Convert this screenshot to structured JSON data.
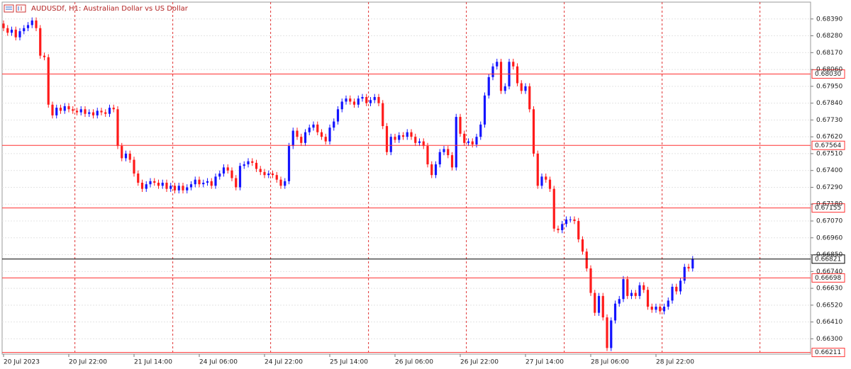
{
  "chart_data": {
    "type": "candlestick",
    "title": "AUDUSDf, H1:  Australian Dollar vs US Dollar",
    "up_color": "#1414ff",
    "down_color": "#ff1a1a",
    "grid": true,
    "ylim": [
      0.662,
      0.685
    ],
    "yticks": [
      {
        "value": 0.6839,
        "label": "0.68390"
      },
      {
        "value": 0.6828,
        "label": "0.68280"
      },
      {
        "value": 0.6817,
        "label": "0.68170"
      },
      {
        "value": 0.6806,
        "label": "0.68060"
      },
      {
        "value": 0.6795,
        "label": "0.67950"
      },
      {
        "value": 0.6784,
        "label": "0.67840"
      },
      {
        "value": 0.6773,
        "label": "0.67730"
      },
      {
        "value": 0.6762,
        "label": "0.67620"
      },
      {
        "value": 0.6751,
        "label": "0.67510"
      },
      {
        "value": 0.674,
        "label": "0.67400"
      },
      {
        "value": 0.6729,
        "label": "0.67290"
      },
      {
        "value": 0.6718,
        "label": "0.67180"
      },
      {
        "value": 0.6707,
        "label": "0.67070"
      },
      {
        "value": 0.6696,
        "label": "0.66960"
      },
      {
        "value": 0.6685,
        "label": "0.66850"
      },
      {
        "value": 0.6674,
        "label": "0.66740"
      },
      {
        "value": 0.6663,
        "label": "0.66630"
      },
      {
        "value": 0.6652,
        "label": "0.66520"
      },
      {
        "value": 0.6641,
        "label": "0.66410"
      },
      {
        "value": 0.663,
        "label": "0.66300"
      }
    ],
    "levels": [
      {
        "value": 0.6803,
        "label": "0.68030",
        "color": "#ff3030"
      },
      {
        "value": 0.67564,
        "label": "0.67564",
        "color": "#ff3030"
      },
      {
        "value": 0.67155,
        "label": "0.67155",
        "color": "#ff3030"
      },
      {
        "value": 0.66821,
        "label": "0.66821",
        "color": "#000000"
      },
      {
        "value": 0.66698,
        "label": "0.66698",
        "color": "#ff3030"
      },
      {
        "value": 0.66211,
        "label": "0.66211",
        "color": "#ff3030"
      }
    ],
    "categories": [
      "20 Jul 2023",
      null,
      null,
      null,
      null,
      null,
      null,
      null,
      null,
      null,
      null,
      null,
      null,
      null,
      null,
      null,
      "20 Jul 22:00",
      null,
      null,
      null,
      null,
      null,
      null,
      null,
      null,
      null,
      null,
      null,
      null,
      null,
      null,
      null,
      "21 Jul 14:00",
      null,
      null,
      null,
      null,
      null,
      null,
      null,
      null,
      null,
      null,
      null,
      null,
      null,
      null,
      null,
      "24 Jul 06:00",
      null,
      null,
      null,
      null,
      null,
      null,
      null,
      null,
      null,
      null,
      null,
      null,
      null,
      null,
      null,
      "24 Jul 22:00",
      null,
      null,
      null,
      null,
      null,
      null,
      null,
      null,
      null,
      null,
      null,
      null,
      null,
      null,
      null,
      "25 Jul 14:00",
      null,
      null,
      null,
      null,
      null,
      null,
      null,
      null,
      null,
      null,
      null,
      null,
      null,
      null,
      null,
      "26 Jul 06:00",
      null,
      null,
      null,
      null,
      null,
      null,
      null,
      null,
      null,
      null,
      null,
      null,
      null,
      null,
      null,
      "26 Jul 22:00",
      null,
      null,
      null,
      null,
      null,
      null,
      null,
      null,
      null,
      null,
      null,
      null,
      null,
      null,
      null,
      "27 Jul 14:00",
      null,
      null,
      null,
      null,
      null,
      null,
      null,
      null,
      null,
      null,
      null,
      null,
      null,
      null,
      null,
      "28 Jul 06:00",
      null,
      null,
      null,
      null,
      null,
      null,
      null,
      null,
      null,
      null,
      null,
      null,
      null,
      null,
      null,
      "28 Jul 22:00",
      null,
      null,
      null,
      null,
      null,
      null,
      null,
      null,
      null
    ],
    "open": [
      0.6836,
      0.6833,
      0.683,
      0.6832,
      0.6827,
      0.6831,
      0.6833,
      0.6835,
      0.6838,
      0.6833,
      0.6815,
      0.6814,
      0.6783,
      0.6776,
      0.6781,
      0.6779,
      0.6782,
      0.678,
      0.6779,
      0.6778,
      0.678,
      0.6777,
      0.6778,
      0.6776,
      0.6779,
      0.6778,
      0.6777,
      0.6781,
      0.678,
      0.6756,
      0.6748,
      0.6751,
      0.6747,
      0.6738,
      0.6732,
      0.6728,
      0.6731,
      0.6733,
      0.6732,
      0.673,
      0.6732,
      0.6728,
      0.673,
      0.6727,
      0.673,
      0.6727,
      0.6729,
      0.6731,
      0.6734,
      0.6731,
      0.6732,
      0.6733,
      0.673,
      0.6736,
      0.6738,
      0.6742,
      0.674,
      0.6735,
      0.6729,
      0.6743,
      0.6744,
      0.6746,
      0.6745,
      0.6741,
      0.6739,
      0.6737,
      0.6738,
      0.6737,
      0.6734,
      0.673,
      0.6733,
      0.6756,
      0.6766,
      0.6762,
      0.6758,
      0.6765,
      0.6768,
      0.677,
      0.6765,
      0.6762,
      0.6759,
      0.6768,
      0.6772,
      0.678,
      0.6785,
      0.6787,
      0.6785,
      0.6783,
      0.6787,
      0.6788,
      0.6784,
      0.6786,
      0.6788,
      0.6784,
      0.6769,
      0.6752,
      0.6762,
      0.676,
      0.6763,
      0.6762,
      0.6765,
      0.6762,
      0.6758,
      0.6759,
      0.6756,
      0.6744,
      0.6737,
      0.6744,
      0.6752,
      0.6754,
      0.675,
      0.6742,
      0.6775,
      0.6764,
      0.6758,
      0.6759,
      0.6757,
      0.6762,
      0.677,
      0.6789,
      0.6801,
      0.6808,
      0.6811,
      0.6792,
      0.6795,
      0.6811,
      0.6808,
      0.6797,
      0.6792,
      0.6795,
      0.678,
      0.6751,
      0.673,
      0.6736,
      0.6734,
      0.6728,
      0.6702,
      0.6701,
      0.6705,
      0.6708,
      0.6708,
      0.6707,
      0.6695,
      0.6687,
      0.6676,
      0.666,
      0.6647,
      0.6658,
      0.6644,
      0.6624,
      0.6642,
      0.6653,
      0.6656,
      0.6669,
      0.6658,
      0.666,
      0.6658,
      0.6665,
      0.6662,
      0.6651,
      0.6649,
      0.6651,
      0.6648,
      0.6651,
      0.6655,
      0.6664,
      0.6661,
      0.6668,
      0.6677,
      0.6676
    ],
    "high": [
      0.6838,
      0.6835,
      0.6834,
      0.6834,
      0.6833,
      0.6835,
      0.6837,
      0.684,
      0.684,
      0.6835,
      0.6817,
      0.6816,
      0.6785,
      0.6783,
      0.6783,
      0.6784,
      0.6784,
      0.6782,
      0.6781,
      0.6782,
      0.6782,
      0.678,
      0.678,
      0.6781,
      0.6781,
      0.678,
      0.6783,
      0.6783,
      0.6782,
      0.6758,
      0.6753,
      0.6753,
      0.6749,
      0.674,
      0.6734,
      0.6733,
      0.6735,
      0.6735,
      0.6734,
      0.6734,
      0.6734,
      0.6732,
      0.6732,
      0.6732,
      0.6732,
      0.6731,
      0.6733,
      0.6736,
      0.6736,
      0.6734,
      0.6735,
      0.6735,
      0.6738,
      0.674,
      0.6744,
      0.6744,
      0.6742,
      0.6737,
      0.6745,
      0.6746,
      0.6748,
      0.6748,
      0.6747,
      0.6743,
      0.6741,
      0.674,
      0.674,
      0.6739,
      0.6736,
      0.6735,
      0.6758,
      0.6768,
      0.6768,
      0.6764,
      0.6767,
      0.677,
      0.6772,
      0.6772,
      0.6767,
      0.6764,
      0.677,
      0.6774,
      0.6782,
      0.6787,
      0.6789,
      0.6789,
      0.6787,
      0.6789,
      0.679,
      0.679,
      0.6788,
      0.679,
      0.679,
      0.6786,
      0.6771,
      0.6764,
      0.6764,
      0.6765,
      0.6765,
      0.6767,
      0.6767,
      0.6764,
      0.6761,
      0.6761,
      0.6758,
      0.6746,
      0.6746,
      0.6754,
      0.6756,
      0.6756,
      0.6752,
      0.6777,
      0.6777,
      0.6766,
      0.6761,
      0.6761,
      0.6764,
      0.6772,
      0.6791,
      0.6803,
      0.681,
      0.6813,
      0.6813,
      0.6797,
      0.6813,
      0.6813,
      0.681,
      0.6799,
      0.6797,
      0.6797,
      0.6782,
      0.6753,
      0.6738,
      0.6738,
      0.6736,
      0.673,
      0.6704,
      0.6707,
      0.671,
      0.671,
      0.671,
      0.6709,
      0.6697,
      0.6689,
      0.6678,
      0.6662,
      0.666,
      0.666,
      0.6646,
      0.6644,
      0.6655,
      0.6658,
      0.6671,
      0.6671,
      0.6662,
      0.6662,
      0.6667,
      0.6667,
      0.6664,
      0.6653,
      0.6653,
      0.6653,
      0.6653,
      0.6657,
      0.6666,
      0.6666,
      0.667,
      0.6679,
      0.6679,
      0.66841
    ],
    "low": [
      0.6831,
      0.6828,
      0.6828,
      0.6825,
      0.6825,
      0.6829,
      0.6831,
      0.6833,
      0.6831,
      0.6813,
      0.6812,
      0.6781,
      0.6774,
      0.6774,
      0.6777,
      0.6777,
      0.6778,
      0.6777,
      0.6776,
      0.6776,
      0.6775,
      0.6775,
      0.6774,
      0.6774,
      0.6776,
      0.6775,
      0.6775,
      0.6778,
      0.6754,
      0.6746,
      0.6746,
      0.6745,
      0.6736,
      0.673,
      0.6726,
      0.6726,
      0.6729,
      0.673,
      0.6728,
      0.6728,
      0.6726,
      0.6726,
      0.6725,
      0.6725,
      0.6725,
      0.6725,
      0.6727,
      0.6729,
      0.6729,
      0.6729,
      0.673,
      0.6728,
      0.6728,
      0.6734,
      0.6736,
      0.6738,
      0.6733,
      0.6727,
      0.6727,
      0.6741,
      0.6742,
      0.6743,
      0.6739,
      0.6737,
      0.6735,
      0.6735,
      0.6735,
      0.6732,
      0.6728,
      0.6728,
      0.6731,
      0.6754,
      0.676,
      0.6756,
      0.6756,
      0.6763,
      0.6766,
      0.6763,
      0.676,
      0.6757,
      0.6757,
      0.6766,
      0.677,
      0.6778,
      0.6783,
      0.6783,
      0.6781,
      0.6781,
      0.6785,
      0.6782,
      0.6782,
      0.6784,
      0.6782,
      0.6767,
      0.675,
      0.675,
      0.6758,
      0.6758,
      0.676,
      0.676,
      0.676,
      0.6756,
      0.6756,
      0.6754,
      0.6742,
      0.6735,
      0.6735,
      0.6742,
      0.675,
      0.6748,
      0.674,
      0.674,
      0.6762,
      0.6756,
      0.6756,
      0.6755,
      0.6755,
      0.676,
      0.6768,
      0.6787,
      0.6799,
      0.6806,
      0.679,
      0.679,
      0.6793,
      0.6806,
      0.6795,
      0.679,
      0.679,
      0.6778,
      0.6749,
      0.6728,
      0.6728,
      0.6732,
      0.6726,
      0.67,
      0.6699,
      0.6699,
      0.6703,
      0.6706,
      0.6705,
      0.6693,
      0.6685,
      0.6674,
      0.6658,
      0.6645,
      0.6645,
      0.6642,
      0.6622,
      0.6622,
      0.664,
      0.6651,
      0.6654,
      0.6656,
      0.6656,
      0.6656,
      0.6656,
      0.666,
      0.6649,
      0.6647,
      0.6647,
      0.6646,
      0.6646,
      0.6649,
      0.6653,
      0.6659,
      0.6659,
      0.6666,
      0.6674,
      0.6674
    ],
    "close": [
      0.6833,
      0.683,
      0.6832,
      0.6827,
      0.6831,
      0.6833,
      0.6835,
      0.6838,
      0.6833,
      0.6815,
      0.6814,
      0.6783,
      0.6776,
      0.6781,
      0.6779,
      0.6782,
      0.678,
      0.6779,
      0.6778,
      0.678,
      0.6777,
      0.6778,
      0.6776,
      0.6779,
      0.6778,
      0.6777,
      0.6781,
      0.678,
      0.6756,
      0.6748,
      0.6751,
      0.6747,
      0.6738,
      0.6732,
      0.6728,
      0.6731,
      0.6733,
      0.6732,
      0.673,
      0.6732,
      0.6728,
      0.673,
      0.6727,
      0.673,
      0.6727,
      0.6729,
      0.6731,
      0.6734,
      0.6731,
      0.6732,
      0.6733,
      0.673,
      0.6736,
      0.6738,
      0.6742,
      0.674,
      0.6735,
      0.6729,
      0.6743,
      0.6744,
      0.6746,
      0.6745,
      0.6741,
      0.6739,
      0.6737,
      0.6738,
      0.6737,
      0.6734,
      0.673,
      0.6733,
      0.6756,
      0.6766,
      0.6762,
      0.6758,
      0.6765,
      0.6768,
      0.677,
      0.6765,
      0.6762,
      0.6759,
      0.6768,
      0.6772,
      0.678,
      0.6785,
      0.6787,
      0.6785,
      0.6783,
      0.6787,
      0.6788,
      0.6784,
      0.6786,
      0.6788,
      0.6784,
      0.6769,
      0.6752,
      0.6762,
      0.676,
      0.6763,
      0.6762,
      0.6765,
      0.6762,
      0.6758,
      0.6759,
      0.6756,
      0.6744,
      0.6737,
      0.6744,
      0.6752,
      0.6754,
      0.675,
      0.6742,
      0.6775,
      0.6764,
      0.6758,
      0.6759,
      0.6757,
      0.6762,
      0.677,
      0.6789,
      0.6801,
      0.6808,
      0.6811,
      0.6792,
      0.6795,
      0.6811,
      0.6808,
      0.6797,
      0.6792,
      0.6795,
      0.678,
      0.6751,
      0.673,
      0.6736,
      0.6734,
      0.6728,
      0.6702,
      0.6701,
      0.6705,
      0.6708,
      0.6708,
      0.6707,
      0.6695,
      0.6687,
      0.6676,
      0.666,
      0.6647,
      0.6658,
      0.6644,
      0.6624,
      0.6642,
      0.6653,
      0.6656,
      0.6669,
      0.6658,
      0.666,
      0.6658,
      0.6665,
      0.6662,
      0.6651,
      0.6649,
      0.6651,
      0.6648,
      0.6651,
      0.6655,
      0.6664,
      0.6661,
      0.6668,
      0.6677,
      0.6676,
      0.66821
    ]
  }
}
